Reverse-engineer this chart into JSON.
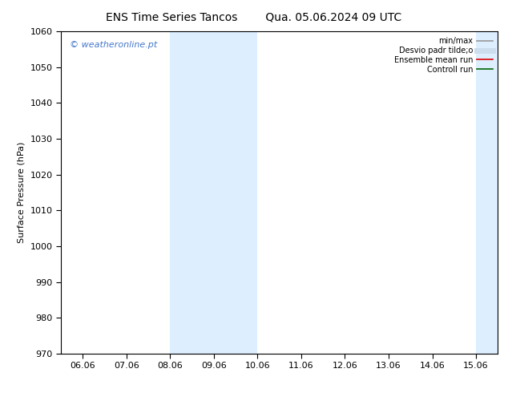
{
  "title_left": "ENS Time Series Tancos",
  "title_right": "Qua. 05.06.2024 09 UTC",
  "ylabel": "Surface Pressure (hPa)",
  "ylim": [
    970,
    1060
  ],
  "yticks": [
    970,
    980,
    990,
    1000,
    1010,
    1020,
    1030,
    1040,
    1050,
    1060
  ],
  "xtick_labels": [
    "06.06",
    "07.06",
    "08.06",
    "09.06",
    "10.06",
    "11.06",
    "12.06",
    "13.06",
    "14.06",
    "15.06"
  ],
  "num_ticks": 10,
  "shaded_regions": [
    {
      "xmin": 2,
      "xmax": 4
    },
    {
      "xmin": 9,
      "xmax": 10
    }
  ],
  "shade_color": "#ddeeff",
  "watermark": "© weatheronline.pt",
  "watermark_color": "#4477cc",
  "legend_items": [
    {
      "label": "min/max",
      "color": "#999999",
      "lw": 1.2,
      "ls": "-"
    },
    {
      "label": "Desvio padr tilde;o",
      "color": "#ccddee",
      "lw": 5,
      "ls": "-"
    },
    {
      "label": "Ensemble mean run",
      "color": "#dd0000",
      "lw": 1.2,
      "ls": "-"
    },
    {
      "label": "Controll run",
      "color": "#006600",
      "lw": 1.2,
      "ls": "-"
    }
  ],
  "background_color": "#ffffff",
  "spine_color": "#000000",
  "tick_color": "#000000",
  "title_fontsize": 10,
  "label_fontsize": 8,
  "tick_fontsize": 8,
  "watermark_fontsize": 8,
  "legend_fontsize": 7
}
